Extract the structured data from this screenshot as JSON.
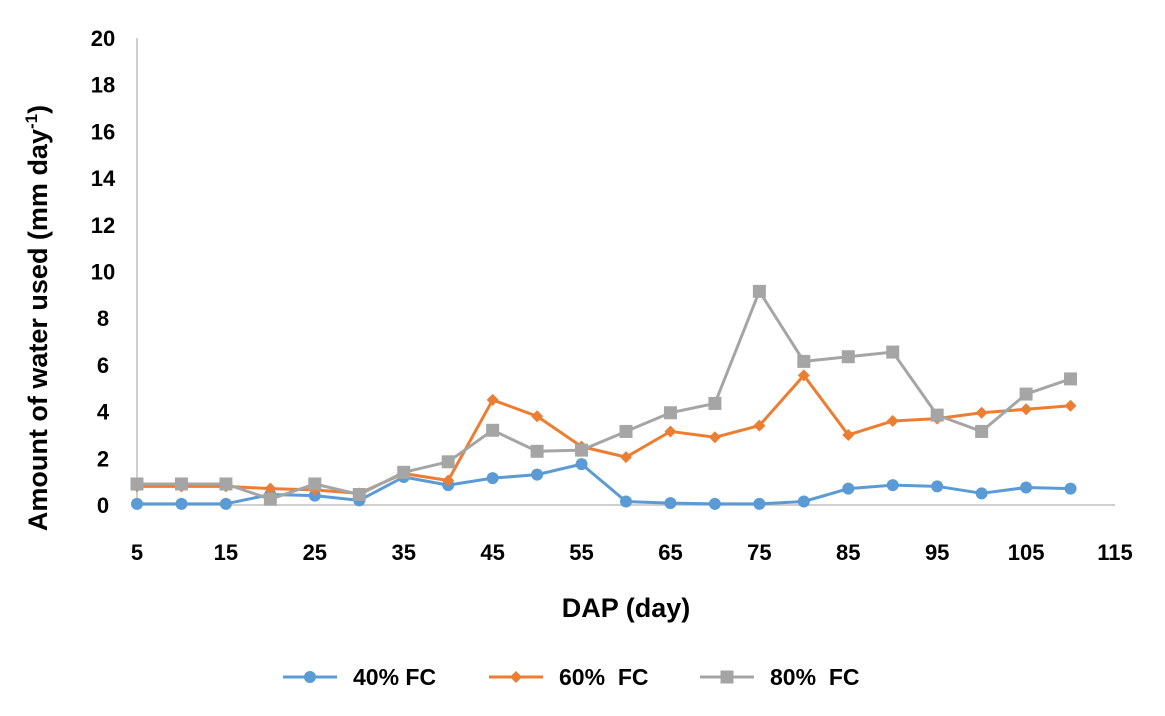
{
  "chart_data": {
    "type": "line",
    "title": "",
    "xlabel": "DAP (day)",
    "ylabel_main": "Amount of water used (mm day",
    "ylabel_sup": "-1",
    "ylabel_end": ")",
    "xlim": [
      5,
      115
    ],
    "ylim": [
      0,
      20
    ],
    "x_ticks": [
      "5",
      "15",
      "25",
      "35",
      "45",
      "55",
      "65",
      "75",
      "85",
      "95",
      "105",
      "115"
    ],
    "y_ticks": [
      "0",
      "2",
      "4",
      "6",
      "8",
      "10",
      "12",
      "14",
      "16",
      "18",
      "20"
    ],
    "x": [
      5,
      10,
      15,
      20,
      25,
      30,
      35,
      40,
      45,
      50,
      55,
      60,
      65,
      70,
      75,
      80,
      85,
      90,
      95,
      100,
      105,
      110
    ],
    "legend_position": "bottom",
    "grid": false,
    "series": [
      {
        "name": "40% FC",
        "color": "#5b9bd5",
        "marker": "circle",
        "values": [
          0.05,
          0.05,
          0.05,
          0.45,
          0.4,
          0.2,
          1.2,
          0.85,
          1.15,
          1.3,
          1.75,
          0.15,
          0.08,
          0.05,
          0.05,
          0.15,
          0.7,
          0.85,
          0.8,
          0.5,
          0.75,
          0.7
        ]
      },
      {
        "name": "60%  FC",
        "color": "#ed7d31",
        "marker": "diamond",
        "values": [
          0.8,
          0.8,
          0.8,
          0.7,
          0.65,
          0.5,
          1.35,
          1.05,
          4.5,
          3.8,
          2.5,
          2.05,
          3.15,
          2.9,
          3.4,
          5.55,
          3.0,
          3.6,
          3.7,
          3.95,
          4.1,
          4.25
        ]
      },
      {
        "name": "80%  FC",
        "color": "#a5a5a5",
        "marker": "square",
        "values": [
          0.9,
          0.9,
          0.9,
          0.25,
          0.9,
          0.45,
          1.4,
          1.85,
          3.2,
          2.3,
          2.35,
          3.15,
          3.95,
          4.35,
          9.15,
          6.15,
          6.35,
          6.55,
          3.85,
          3.15,
          4.75,
          5.4
        ]
      }
    ]
  }
}
